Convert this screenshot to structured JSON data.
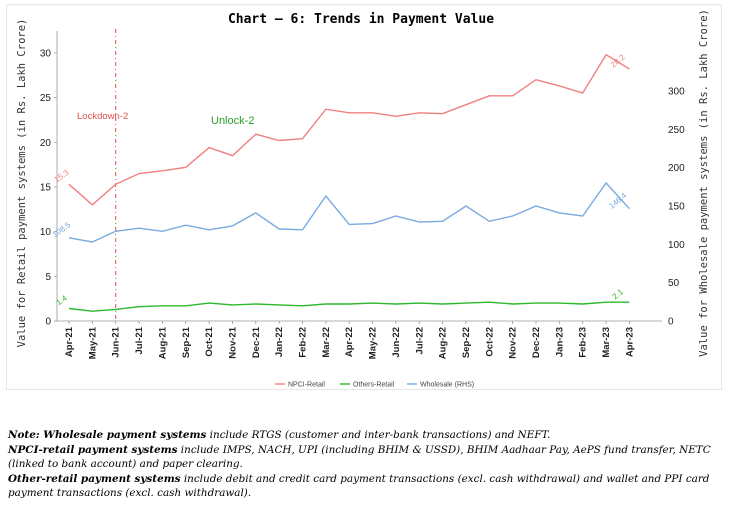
{
  "chart_data": {
    "type": "line",
    "title": "Chart – 6: Trends in Payment Value",
    "ylabel_left": "Value for Retail payment systems (in Rs. Lakh Crore)",
    "ylabel_right": "Value for Wholesale payment systems (in Rs. Lakh Crore)",
    "categories": [
      "Apr-21",
      "May-21",
      "Jun-21",
      "Jul-21",
      "Aug-21",
      "Sep-21",
      "Oct-21",
      "Nov-21",
      "Dec-21",
      "Jan-22",
      "Feb-22",
      "Mar-22",
      "Apr-22",
      "May-22",
      "Jun-22",
      "Jul-22",
      "Aug-22",
      "Sep-22",
      "Oct-22",
      "Nov-22",
      "Dec-22",
      "Jan-23",
      "Feb-23",
      "Mar-23",
      "Apr-23"
    ],
    "ylim_left": [
      0,
      32
    ],
    "yticks_left": [
      0,
      5,
      10,
      15,
      20,
      25,
      30
    ],
    "ylim_right": [
      0,
      373
    ],
    "yticks_right": [
      0,
      50,
      100,
      150,
      200,
      250,
      300
    ],
    "grid": false,
    "legend_position": "bottom",
    "series": [
      {
        "name": "NPCI-Retail",
        "axis": "left",
        "color": "#f08080",
        "values": [
          15.3,
          13.0,
          15.3,
          16.5,
          16.8,
          17.2,
          19.4,
          18.5,
          20.9,
          20.2,
          20.4,
          23.7,
          23.3,
          23.3,
          22.9,
          23.3,
          23.2,
          24.2,
          25.2,
          25.2,
          27.0,
          26.3,
          25.5,
          29.8,
          28.2
        ],
        "start_label": "15.3",
        "end_label": "28.2"
      },
      {
        "name": "Others-Retail",
        "axis": "left",
        "color": "#2eb82e",
        "values": [
          1.4,
          1.1,
          1.3,
          1.6,
          1.7,
          1.7,
          2.0,
          1.8,
          1.9,
          1.8,
          1.7,
          1.9,
          1.9,
          2.0,
          1.9,
          2.0,
          1.9,
          2.0,
          2.1,
          1.9,
          2.0,
          2.0,
          1.9,
          2.1,
          2.1
        ],
        "start_label": "1.4",
        "end_label": "2.1"
      },
      {
        "name": "Wholesale (RHS)",
        "axis": "right",
        "color": "#7aaae0",
        "values": [
          108.5,
          103.0,
          117.0,
          121.0,
          117.0,
          125.0,
          119.0,
          124.0,
          141.0,
          120.0,
          119.0,
          163.0,
          126.0,
          127.0,
          137.0,
          129.0,
          130.0,
          150.0,
          130.0,
          137.0,
          150.0,
          141.0,
          137.0,
          180.0,
          146.4
        ],
        "start_label": "108.5",
        "end_label": "146.4"
      }
    ],
    "annotations": {
      "lockdown_label": "Lockdown-2",
      "unlock_label": "Unlock-2",
      "marker_category": "Jun-21"
    }
  },
  "notes": {
    "n1_bold": "Note: Wholesale payment systems",
    "n1_text": " include RTGS (customer and inter-bank transactions) and NEFT.",
    "n2_bold": "NPCI-retail payment systems",
    "n2_text": " include IMPS, NACH, UPI (including BHIM & USSD), BHIM Aadhaar Pay, AePS fund transfer, NETC (linked to bank account) and paper clearing.",
    "n3_bold": "Other-retail payment systems",
    "n3_text": " include debit and credit card payment transactions (excl. cash withdrawal) and wallet and PPI card payment transactions (excl. cash withdrawal)."
  }
}
